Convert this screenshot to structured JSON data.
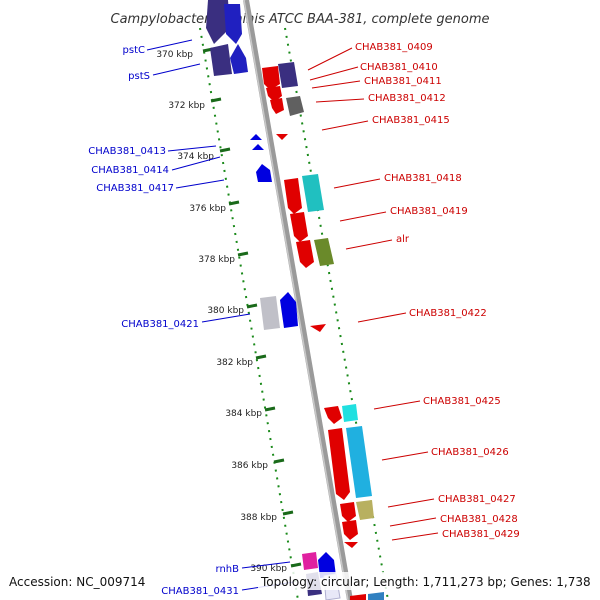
{
  "title": "Campylobacter hominis ATCC BAA-381, complete genome",
  "footer": {
    "accession": "Accession: NC_009714",
    "topology": "Topology: circular; Length: 1,711,273 bp; Genes: 1,738"
  },
  "colors": {
    "backbone": "#808080",
    "tick": "#1a7a1a",
    "forward_label": "#0000cc",
    "reverse_label": "#cc0000"
  },
  "ticks": [
    "370 kbp",
    "372 kbp",
    "374 kbp",
    "376 kbp",
    "378 kbp",
    "380 kbp",
    "382 kbp",
    "384 kbp",
    "386 kbp",
    "388 kbp",
    "390 kbp"
  ],
  "features": [
    {
      "label": "pstC",
      "strand": "forward",
      "color": "#3a2f80"
    },
    {
      "label": "pstS",
      "strand": "forward",
      "color": "#2020c0"
    },
    {
      "label": "CHAB381_0409",
      "strand": "reverse",
      "color": "#e00000"
    },
    {
      "label": "CHAB381_0410",
      "strand": "reverse",
      "color": "#3a2f80"
    },
    {
      "label": "CHAB381_0411",
      "strand": "reverse",
      "color": "#e00000"
    },
    {
      "label": "CHAB381_0412",
      "strand": "reverse",
      "color": "#606060"
    },
    {
      "label": "CHAB381_0415",
      "strand": "reverse",
      "color": "#e00000"
    },
    {
      "label": "CHAB381_0413",
      "strand": "forward",
      "color": "#0000e0"
    },
    {
      "label": "CHAB381_0414",
      "strand": "forward",
      "color": "#0000e0"
    },
    {
      "label": "CHAB381_0417",
      "strand": "forward",
      "color": "#0000e0"
    },
    {
      "label": "CHAB381_0418",
      "strand": "reverse",
      "color": "#20c0c0"
    },
    {
      "label": "CHAB381_0419",
      "strand": "reverse",
      "color": "#e00000"
    },
    {
      "label": "alr",
      "strand": "reverse",
      "color": "#6a8a2a"
    },
    {
      "label": "CHAB381_0421",
      "strand": "forward",
      "color": "#c0c0c8"
    },
    {
      "label": "CHAB381_0422",
      "strand": "reverse",
      "color": "#e00000"
    },
    {
      "label": "CHAB381_0425",
      "strand": "reverse",
      "color": "#20e0e0"
    },
    {
      "label": "CHAB381_0426",
      "strand": "reverse",
      "color": "#20b0e0"
    },
    {
      "label": "CHAB381_0427",
      "strand": "reverse",
      "color": "#b8b060"
    },
    {
      "label": "CHAB381_0428",
      "strand": "reverse",
      "color": "#e00000"
    },
    {
      "label": "CHAB381_0429",
      "strand": "reverse",
      "color": "#e00000"
    },
    {
      "label": "rnhB",
      "strand": "forward",
      "color": "#e020a0"
    },
    {
      "label": "CHAB381_0431",
      "strand": "forward",
      "color": "#0000e0"
    }
  ]
}
